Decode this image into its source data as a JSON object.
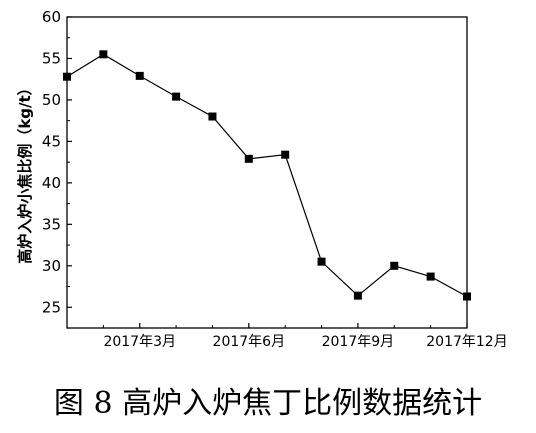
{
  "caption": "图 8  高炉入炉焦丁比例数据统计",
  "chart_data": {
    "type": "line",
    "title": "",
    "xlabel": "",
    "ylabel": "高炉入炉小焦比例（kg/t）",
    "ylim": [
      22.5,
      60
    ],
    "yticks": [
      25,
      30,
      35,
      40,
      45,
      50,
      55,
      60
    ],
    "xticks": [
      {
        "month": 3,
        "label": "2017年3月"
      },
      {
        "month": 6,
        "label": "2017年6月"
      },
      {
        "month": 9,
        "label": "2017年9月"
      },
      {
        "month": 12,
        "label": "2017年12月"
      }
    ],
    "x": [
      1,
      2,
      3,
      4,
      5,
      6,
      7,
      8,
      9,
      10,
      11,
      12
    ],
    "values": [
      52.8,
      55.5,
      52.9,
      50.4,
      48.0,
      42.9,
      43.4,
      30.5,
      26.4,
      30.0,
      28.7,
      26.3
    ],
    "grid": false,
    "marker": "square",
    "line_color": "#000000"
  }
}
